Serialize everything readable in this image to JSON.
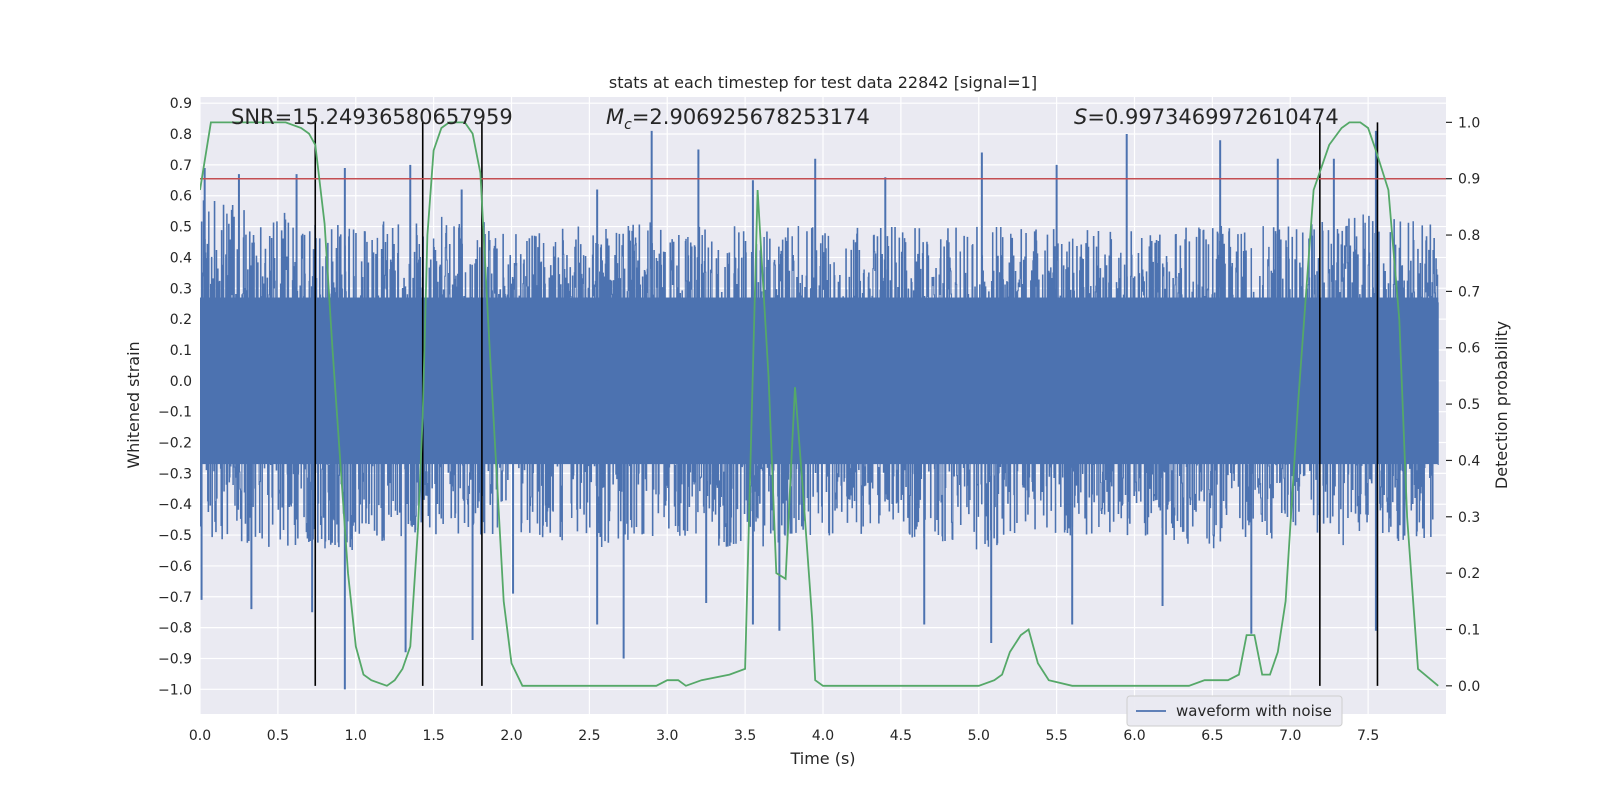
{
  "chart_data": {
    "type": "line",
    "title": "stats at each timestep for test data 22842 [signal=1]",
    "xlabel": "Time (s)",
    "ylabel": "Whitened strain",
    "ylabel_right": "Detection probability",
    "xlim": [
      0,
      8
    ],
    "ylim": [
      -1.08,
      0.92
    ],
    "ylim_right": [
      -0.05,
      1.045
    ],
    "x_ticks": [
      "0.0",
      "0.5",
      "1.0",
      "1.5",
      "2.0",
      "2.5",
      "3.0",
      "3.5",
      "4.0",
      "4.5",
      "5.0",
      "5.5",
      "6.0",
      "6.5",
      "7.0",
      "7.5"
    ],
    "y_ticks": [
      "0.9",
      "0.8",
      "0.7",
      "0.6",
      "0.5",
      "0.4",
      "0.3",
      "0.2",
      "0.1",
      "0.0",
      "−0.1",
      "−0.2",
      "−0.3",
      "−0.4",
      "−0.5",
      "−0.6",
      "−0.7",
      "−0.8",
      "−0.9",
      "−1.0"
    ],
    "y_right_ticks": [
      "1.0",
      "0.9",
      "0.8",
      "0.7",
      "0.6",
      "0.5",
      "0.4",
      "0.3",
      "0.2",
      "0.1",
      "0.0"
    ],
    "grid": true,
    "annotations": {
      "snr": "SNR=15.24936580657959",
      "mc_symbol": "M",
      "mc_sub": "c",
      "mc_value": "=2.906925678253174",
      "s_symbol": "S",
      "s_value": "=0.9973469972610474"
    },
    "legend": {
      "placement": "lower-right",
      "entries": [
        "waveform with noise"
      ]
    },
    "threshold": {
      "value": 0.9,
      "axis": "right",
      "color": "#c44e52"
    },
    "vertical_markers": [
      0.74,
      1.43,
      1.81,
      7.19,
      7.56
    ],
    "series": [
      {
        "name": "waveform with noise",
        "axis": "left",
        "color": "#4c72b0",
        "envelope": {
          "x": [
            0.0,
            0.5,
            1.0,
            1.5,
            2.0,
            2.5,
            3.0,
            3.5,
            4.0,
            4.5,
            5.0,
            5.5,
            6.0,
            6.5,
            7.0,
            7.5,
            7.95
          ],
          "upper": [
            0.6,
            0.55,
            0.5,
            0.55,
            0.5,
            0.5,
            0.52,
            0.5,
            0.5,
            0.5,
            0.5,
            0.5,
            0.5,
            0.5,
            0.5,
            0.55,
            0.5
          ],
          "lower": [
            -0.5,
            -0.55,
            -0.55,
            -0.5,
            -0.5,
            -0.55,
            -0.5,
            -0.55,
            -0.5,
            -0.5,
            -0.55,
            -0.5,
            -0.5,
            -0.55,
            -0.5,
            -0.55,
            -0.5
          ]
        },
        "peaks": [
          [
            0.03,
            0.69
          ],
          [
            0.25,
            0.67
          ],
          [
            0.62,
            0.67
          ],
          [
            0.93,
            0.69
          ],
          [
            1.35,
            0.7
          ],
          [
            1.68,
            0.62
          ],
          [
            2.55,
            0.62
          ],
          [
            2.9,
            0.81
          ],
          [
            3.2,
            0.75
          ],
          [
            3.55,
            0.65
          ],
          [
            3.95,
            0.72
          ],
          [
            4.4,
            0.66
          ],
          [
            5.02,
            0.74
          ],
          [
            5.5,
            0.7
          ],
          [
            5.95,
            0.8
          ],
          [
            6.55,
            0.78
          ],
          [
            6.92,
            0.72
          ],
          [
            7.28,
            0.72
          ],
          [
            7.55,
            0.81
          ]
        ],
        "troughs": [
          [
            0.01,
            -0.71
          ],
          [
            0.33,
            -0.74
          ],
          [
            0.72,
            -0.75
          ],
          [
            0.93,
            -1.0
          ],
          [
            1.32,
            -0.88
          ],
          [
            1.75,
            -0.84
          ],
          [
            2.01,
            -0.69
          ],
          [
            2.55,
            -0.79
          ],
          [
            2.72,
            -0.9
          ],
          [
            3.25,
            -0.72
          ],
          [
            3.55,
            -0.79
          ],
          [
            3.72,
            -0.81
          ],
          [
            4.65,
            -0.79
          ],
          [
            5.08,
            -0.85
          ],
          [
            5.6,
            -0.79
          ],
          [
            6.18,
            -0.73
          ],
          [
            6.75,
            -0.82
          ],
          [
            7.55,
            -0.81
          ]
        ]
      },
      {
        "name": "detection probability",
        "axis": "right",
        "color": "#55a868",
        "x": [
          0.0,
          0.07,
          0.1,
          0.15,
          0.4,
          0.55,
          0.65,
          0.7,
          0.74,
          0.8,
          0.85,
          0.9,
          0.95,
          1.0,
          1.05,
          1.1,
          1.2,
          1.25,
          1.3,
          1.35,
          1.4,
          1.43,
          1.46,
          1.5,
          1.55,
          1.6,
          1.7,
          1.75,
          1.8,
          1.85,
          1.9,
          1.95,
          2.0,
          2.07,
          2.2,
          2.5,
          2.8,
          2.93,
          3.0,
          3.07,
          3.12,
          3.22,
          3.4,
          3.5,
          3.58,
          3.65,
          3.7,
          3.76,
          3.82,
          3.87,
          3.93,
          3.95,
          4.0,
          4.1,
          4.2,
          4.5,
          4.8,
          5.0,
          5.1,
          5.15,
          5.2,
          5.27,
          5.32,
          5.38,
          5.45,
          5.6,
          5.9,
          6.2,
          6.35,
          6.45,
          6.5,
          6.55,
          6.6,
          6.67,
          6.72,
          6.77,
          6.82,
          6.87,
          6.92,
          6.97,
          7.05,
          7.15,
          7.25,
          7.33,
          7.38,
          7.45,
          7.5,
          7.55,
          7.63,
          7.7,
          7.75,
          7.82,
          7.95
        ],
        "y": [
          0.88,
          1.0,
          1.0,
          1.0,
          1.0,
          1.0,
          0.99,
          0.98,
          0.96,
          0.82,
          0.6,
          0.4,
          0.2,
          0.07,
          0.02,
          0.01,
          0.0,
          0.01,
          0.03,
          0.07,
          0.28,
          0.48,
          0.8,
          0.95,
          0.99,
          1.0,
          1.0,
          0.98,
          0.91,
          0.65,
          0.4,
          0.15,
          0.04,
          0.0,
          0.0,
          0.0,
          0.0,
          0.0,
          0.01,
          0.01,
          0.0,
          0.01,
          0.02,
          0.03,
          0.88,
          0.55,
          0.2,
          0.19,
          0.53,
          0.35,
          0.12,
          0.01,
          0.0,
          0.0,
          0.0,
          0.0,
          0.0,
          0.0,
          0.01,
          0.02,
          0.06,
          0.09,
          0.1,
          0.04,
          0.01,
          0.0,
          0.0,
          0.0,
          0.0,
          0.01,
          0.01,
          0.01,
          0.01,
          0.02,
          0.09,
          0.09,
          0.02,
          0.02,
          0.06,
          0.15,
          0.5,
          0.88,
          0.96,
          0.99,
          1.0,
          1.0,
          0.99,
          0.95,
          0.88,
          0.65,
          0.3,
          0.03,
          0.0
        ]
      }
    ]
  }
}
